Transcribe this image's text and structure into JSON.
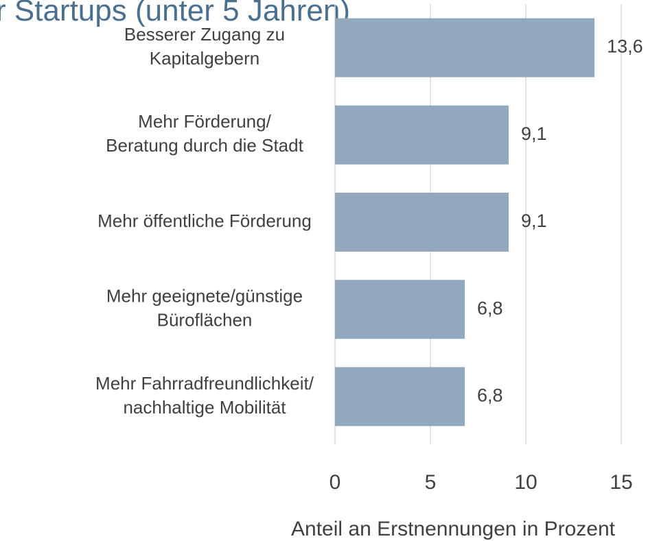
{
  "chart_data": {
    "type": "bar",
    "orientation": "horizontal",
    "title": "r Startups (unter 5 Jahren)",
    "categories": [
      [
        "Besserer Zugang zu",
        "Kapitalgebern"
      ],
      [
        "Mehr Förderung/",
        "Beratung durch die Stadt"
      ],
      [
        "Mehr öffentliche Förderung"
      ],
      [
        "Mehr geeignete/günstige",
        "Büroflächen"
      ],
      [
        "Mehr Fahrradfreundlichkeit/",
        "nachhaltige Mobilität"
      ]
    ],
    "values": [
      13.6,
      9.1,
      9.1,
      6.8,
      6.8
    ],
    "value_labels": [
      "13,6",
      "9,1",
      "9,1",
      "6,8",
      "6,8"
    ],
    "color": "#92a8bc",
    "xlim": [
      0,
      15
    ],
    "xticks": [
      0,
      5,
      10,
      15
    ],
    "x_label": "Anteil an Erstnennungen in Prozent",
    "grid": true
  }
}
